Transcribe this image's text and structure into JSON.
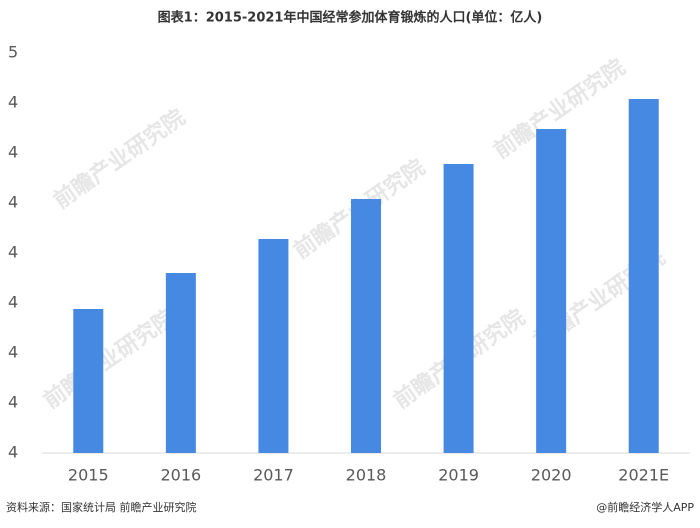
{
  "chart_data": {
    "type": "bar",
    "title": "图表1：2015-2021年中国经常参加体育锻炼的人口(单位：亿人)",
    "categories": [
      "2015",
      "2016",
      "2017",
      "2018",
      "2019",
      "2020",
      "2021E"
    ],
    "values": [
      4.244,
      4.28,
      4.314,
      4.354,
      4.389,
      4.424,
      4.454
    ],
    "color": "#4689e3",
    "ylim": [
      4.1,
      4.5
    ],
    "yticks": [
      {
        "value": 4.1,
        "label": "4"
      },
      {
        "value": 4.15,
        "label": "4"
      },
      {
        "value": 4.2,
        "label": "4"
      },
      {
        "value": 4.25,
        "label": "4"
      },
      {
        "value": 4.3,
        "label": "4"
      },
      {
        "value": 4.35,
        "label": "4"
      },
      {
        "value": 4.4,
        "label": "4"
      },
      {
        "value": 4.45,
        "label": "4"
      },
      {
        "value": 4.5,
        "label": "5"
      }
    ],
    "grid": false,
    "watermark": "前瞻产业研究院",
    "source": "资料来源：国家统计局 前瞻产业研究院",
    "brand": "@前瞻经济学人APP"
  }
}
